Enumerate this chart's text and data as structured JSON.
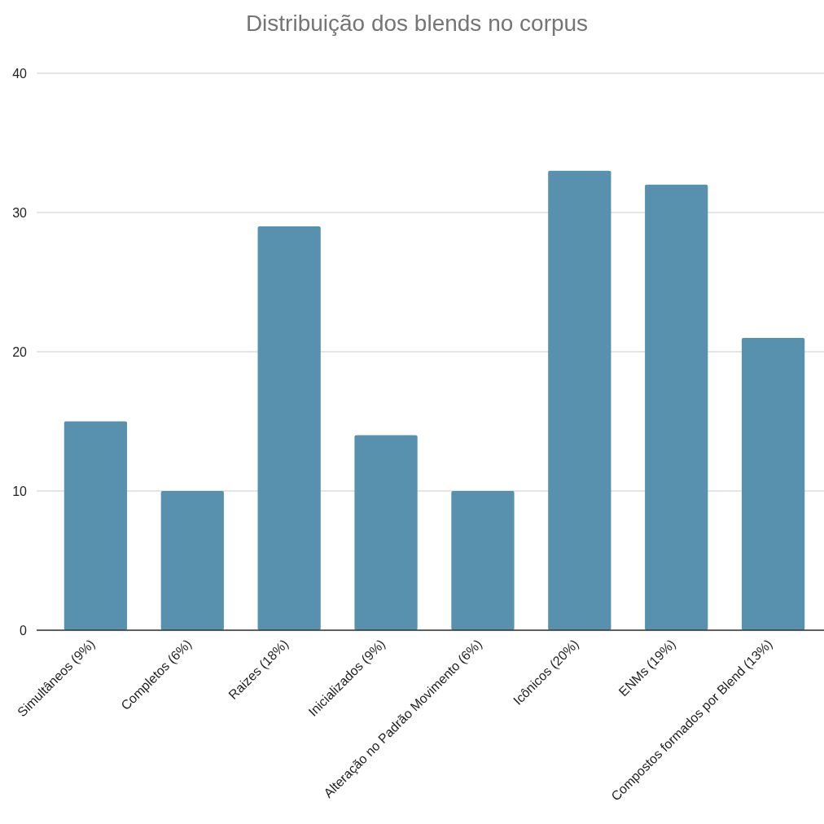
{
  "chart_data": {
    "type": "bar",
    "title": "Distribuição dos blends no corpus",
    "categories": [
      "Simultâneos (9%)",
      "Completos (6%)",
      "Raizes (18%)",
      "Inicializados (9%)",
      "Alteração no Padrão Movimento (6%)",
      "Icônicos (20%)",
      "ENMs (19%)",
      "Compostos formados por Blend (13%)"
    ],
    "values": [
      15,
      10,
      29,
      14,
      10,
      33,
      32,
      21
    ],
    "color": "#5891ae",
    "ylim": [
      0,
      40
    ],
    "yticks": [
      0,
      10,
      20,
      30,
      40
    ],
    "grid": "y"
  }
}
